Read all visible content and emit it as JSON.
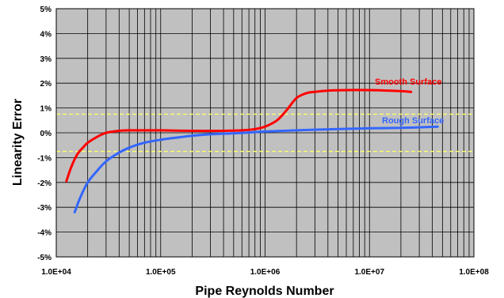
{
  "chart_data": {
    "type": "line",
    "title": "",
    "xlabel": "Pipe Reynolds Number",
    "ylabel": "Linearity Error",
    "x_scale": "log",
    "xlim": [
      10000,
      100000000
    ],
    "ylim": [
      -5,
      5
    ],
    "x_tick_labels": [
      {
        "value": 10000,
        "label": "1.0E+04"
      },
      {
        "value": 100000,
        "label": "1.0E+05"
      },
      {
        "value": 1000000,
        "label": "1.0E+06"
      },
      {
        "value": 10000000,
        "label": "1.0E+07"
      },
      {
        "value": 100000000,
        "label": "1.0E+08"
      }
    ],
    "y_tick_labels": [
      {
        "value": 5,
        "label": "5%"
      },
      {
        "value": 4,
        "label": "4%"
      },
      {
        "value": 3,
        "label": "3%"
      },
      {
        "value": 2,
        "label": "2%"
      },
      {
        "value": 1,
        "label": "1%"
      },
      {
        "value": 0,
        "label": "0%"
      },
      {
        "value": -1,
        "label": "-1%"
      },
      {
        "value": -2,
        "label": "-2%"
      },
      {
        "value": -3,
        "label": "-3%"
      },
      {
        "value": -4,
        "label": "-4%"
      },
      {
        "value": -5,
        "label": "-5%"
      }
    ],
    "grid": true,
    "reference_lines": [
      0.75,
      -0.75
    ],
    "series": [
      {
        "name": "Smooth Surface",
        "color": "#ff0000",
        "x": [
          12500,
          14000,
          16000,
          18000,
          20000,
          25000,
          30000,
          40000,
          50000,
          70000,
          100000,
          200000,
          400000,
          600000,
          800000,
          1000000,
          1300000,
          1600000,
          2000000,
          2500000,
          3000000,
          4000000,
          6000000,
          10000000,
          15000000,
          20000000,
          25000000
        ],
        "y": [
          -1.95,
          -1.35,
          -0.85,
          -0.6,
          -0.4,
          -0.15,
          0.0,
          0.08,
          0.1,
          0.1,
          0.1,
          0.08,
          0.08,
          0.1,
          0.15,
          0.25,
          0.5,
          0.9,
          1.4,
          1.6,
          1.65,
          1.7,
          1.72,
          1.72,
          1.7,
          1.68,
          1.65
        ]
      },
      {
        "name": "Rough Surface",
        "color": "#3366ff",
        "x": [
          15000,
          17000,
          20000,
          25000,
          30000,
          40000,
          50000,
          70000,
          100000,
          150000,
          200000,
          300000,
          500000,
          1000000,
          2000000,
          5000000,
          10000000,
          20000000,
          30000000,
          45000000
        ],
        "y": [
          -3.2,
          -2.6,
          -2.0,
          -1.5,
          -1.15,
          -0.8,
          -0.6,
          -0.4,
          -0.28,
          -0.18,
          -0.12,
          -0.06,
          -0.02,
          0.05,
          0.1,
          0.15,
          0.18,
          0.2,
          0.22,
          0.25
        ]
      }
    ]
  }
}
